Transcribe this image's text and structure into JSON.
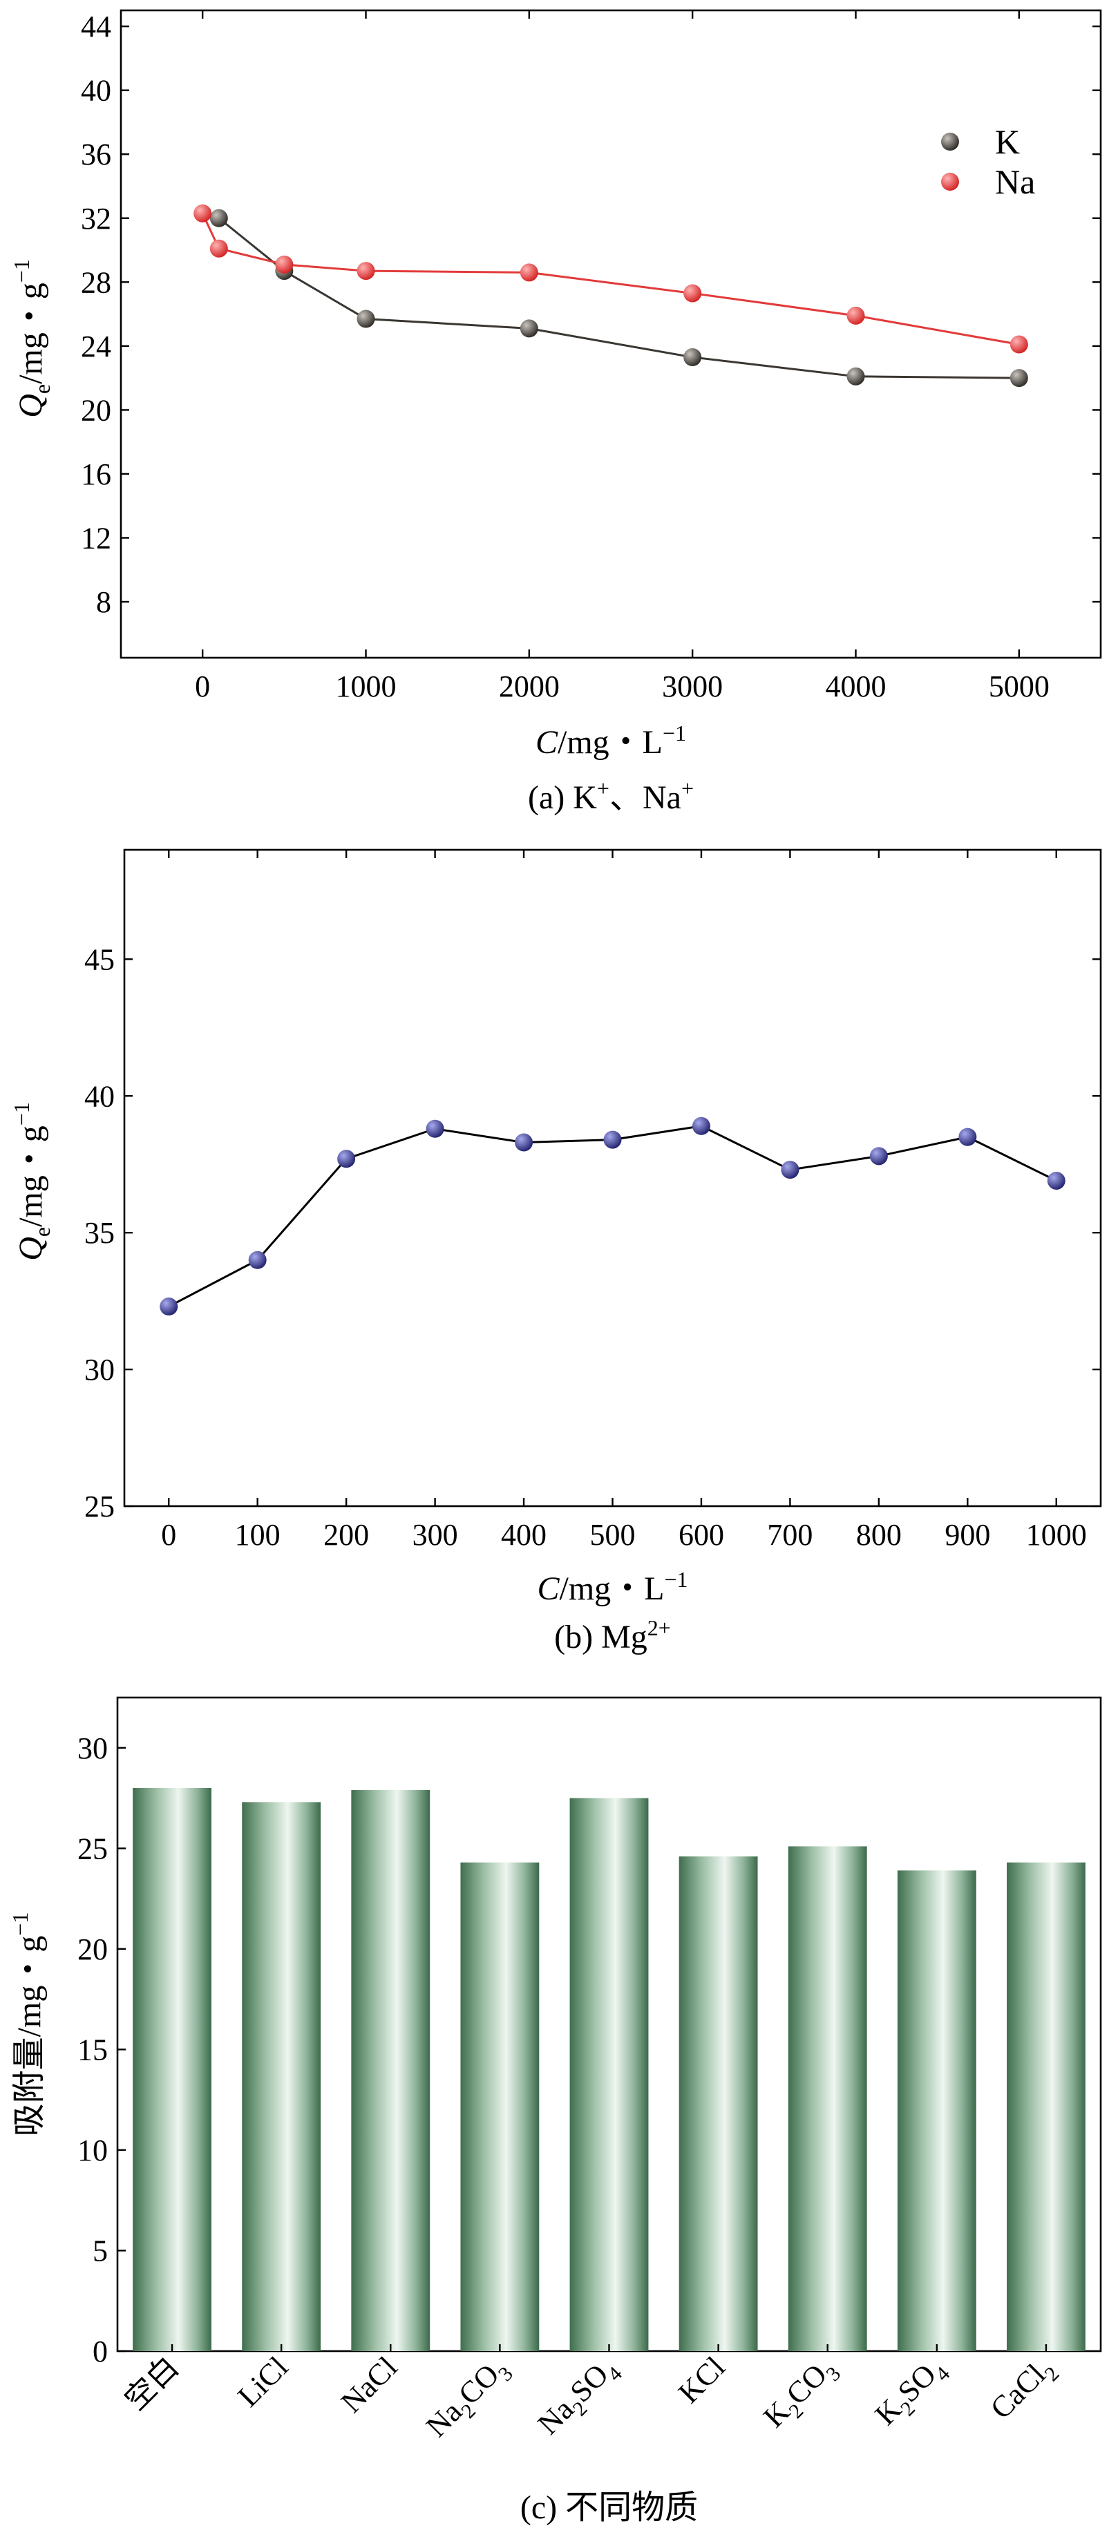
{
  "chart_data": [
    {
      "id": "a",
      "type": "line",
      "caption_prefix": "(a) K",
      "caption_sup1": "+",
      "caption_mid": "、Na",
      "caption_sup2": "+",
      "xlabel_var": "C",
      "xlabel_unit": "/mg・L",
      "xlabel_exp": "−1",
      "ylabel_var": "Q",
      "ylabel_sub": "e",
      "ylabel_unit": "/mg・g",
      "ylabel_exp": "−1",
      "xlim": [
        -500,
        5500
      ],
      "ylim": [
        4.5,
        45
      ],
      "xticks": [
        0,
        1000,
        2000,
        3000,
        4000,
        5000
      ],
      "xtick_labels": [
        "0",
        "1000",
        "2000",
        "3000",
        "4000",
        "5000"
      ],
      "yticks": [
        8,
        12,
        16,
        20,
        24,
        28,
        32,
        36,
        40,
        44
      ],
      "ytick_labels": [
        "8",
        "12",
        "16",
        "20",
        "24",
        "28",
        "32",
        "36",
        "40",
        "44"
      ],
      "legend_position": "top-right",
      "series": [
        {
          "name": "K",
          "color": "#3a3631",
          "line_color": "#3a3631",
          "x": [
            100,
            500,
            1000,
            2000,
            3000,
            4000,
            5000
          ],
          "y": [
            32.0,
            28.7,
            25.7,
            25.1,
            23.3,
            22.1,
            22.0
          ]
        },
        {
          "name": "Na",
          "color": "#e33a3a",
          "line_color": "#e33a3a",
          "x": [
            0,
            100,
            500,
            1000,
            2000,
            3000,
            4000,
            5000
          ],
          "y": [
            32.3,
            30.1,
            29.1,
            28.7,
            28.6,
            27.3,
            25.9,
            24.1
          ]
        }
      ]
    },
    {
      "id": "b",
      "type": "line",
      "caption_prefix": "(b) Mg",
      "caption_sup1": "2+",
      "xlabel_var": "C",
      "xlabel_unit": "/mg・L",
      "xlabel_exp": "−1",
      "ylabel_var": "Q",
      "ylabel_sub": "e",
      "ylabel_unit": "/mg・g",
      "ylabel_exp": "−1",
      "xlim": [
        -50,
        1050
      ],
      "ylim": [
        25,
        49
      ],
      "xticks": [
        0,
        100,
        200,
        300,
        400,
        500,
        600,
        700,
        800,
        900,
        1000
      ],
      "xtick_labels": [
        "0",
        "100",
        "200",
        "300",
        "400",
        "500",
        "600",
        "700",
        "800",
        "900",
        "1000"
      ],
      "yticks": [
        25,
        30,
        35,
        40,
        45
      ],
      "ytick_labels": [
        "25",
        "30",
        "35",
        "40",
        "45"
      ],
      "series": [
        {
          "name": "Mg",
          "color": "#2e2f8a",
          "line_color": "#000000",
          "x": [
            0,
            100,
            200,
            300,
            400,
            500,
            600,
            700,
            800,
            900,
            1000
          ],
          "y": [
            32.3,
            34.0,
            37.7,
            38.8,
            38.3,
            38.4,
            38.9,
            37.3,
            37.8,
            38.5,
            36.9
          ]
        }
      ]
    },
    {
      "id": "c",
      "type": "bar",
      "caption": "(c) 不同物质",
      "ylabel": "吸附量/mg・g",
      "ylabel_exp": "−1",
      "ylim": [
        0,
        32.5
      ],
      "yticks": [
        0,
        5,
        10,
        15,
        20,
        25,
        30
      ],
      "ytick_labels": [
        "0",
        "5",
        "10",
        "15",
        "20",
        "25",
        "30"
      ],
      "bar_color": "#4a7c5a",
      "categories": [
        {
          "parts": [
            "空白"
          ],
          "subs": []
        },
        {
          "parts": [
            "LiCl"
          ],
          "subs": []
        },
        {
          "parts": [
            "NaCl"
          ],
          "subs": []
        },
        {
          "parts": [
            "Na",
            "2",
            "CO",
            "3"
          ],
          "subs": [
            1,
            3
          ]
        },
        {
          "parts": [
            "Na",
            "2",
            "SO",
            "4"
          ],
          "subs": [
            1,
            3
          ]
        },
        {
          "parts": [
            "KCl"
          ],
          "subs": []
        },
        {
          "parts": [
            "K",
            "2",
            "CO",
            "3"
          ],
          "subs": [
            1,
            3
          ]
        },
        {
          "parts": [
            "K",
            "2",
            "SO",
            "4"
          ],
          "subs": [
            1,
            3
          ]
        },
        {
          "parts": [
            "CaCl",
            "2"
          ],
          "subs": [
            1
          ]
        }
      ],
      "values": [
        28.0,
        27.3,
        27.9,
        24.3,
        27.5,
        24.6,
        25.1,
        23.9,
        24.3
      ]
    }
  ]
}
